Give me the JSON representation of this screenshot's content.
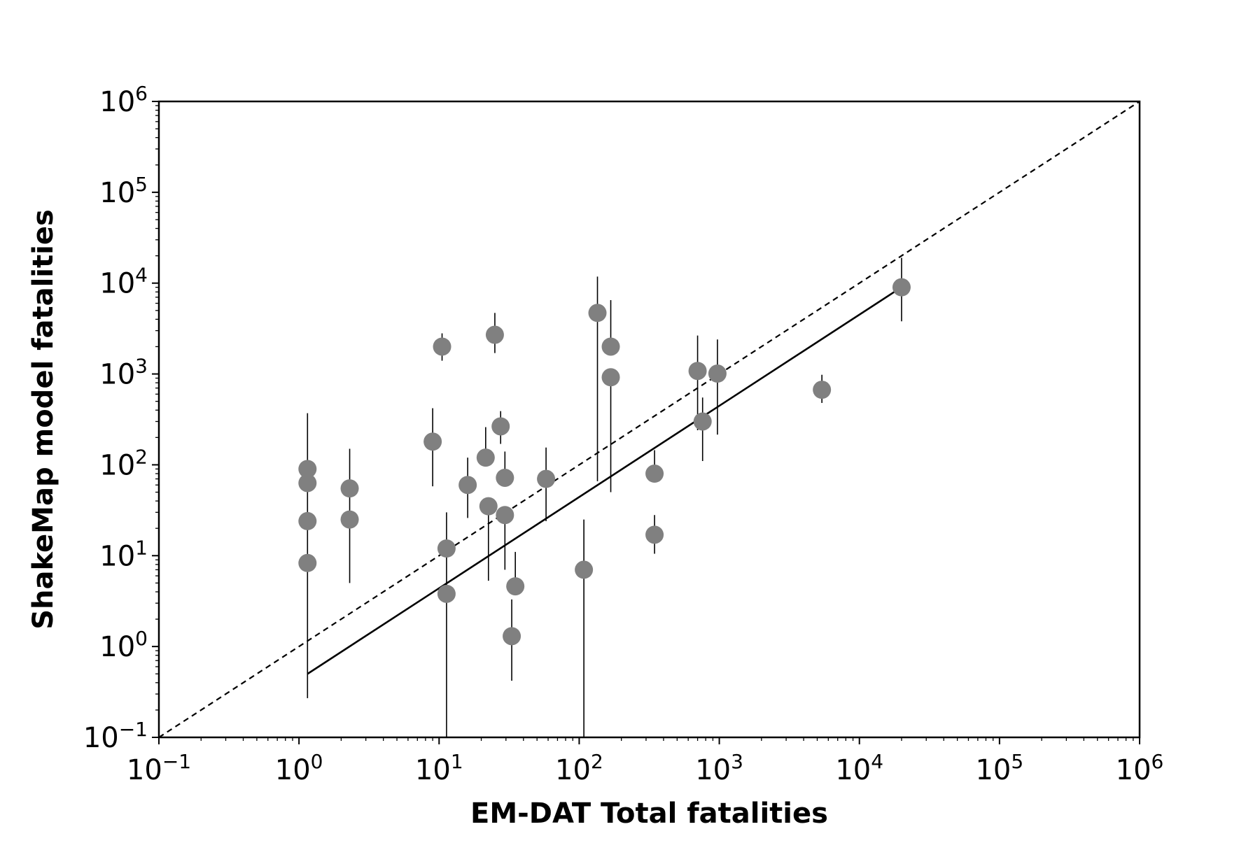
{
  "chart_data": {
    "type": "scatter",
    "title": "",
    "xlabel": "EM-DAT Total fatalities",
    "ylabel": "ShakeMap model fatalities",
    "x_scale": "log",
    "y_scale": "log",
    "xlim": [
      0.1,
      1000000
    ],
    "ylim": [
      0.1,
      1000000
    ],
    "grid": false,
    "legend": "none",
    "x_ticks": [
      {
        "value": 0.1,
        "base": "10",
        "exp": "−1"
      },
      {
        "value": 1,
        "base": "10",
        "exp": "0"
      },
      {
        "value": 10,
        "base": "10",
        "exp": "1"
      },
      {
        "value": 100,
        "base": "10",
        "exp": "2"
      },
      {
        "value": 1000,
        "base": "10",
        "exp": "3"
      },
      {
        "value": 10000,
        "base": "10",
        "exp": "4"
      },
      {
        "value": 100000,
        "base": "10",
        "exp": "5"
      },
      {
        "value": 1000000,
        "base": "10",
        "exp": "6"
      }
    ],
    "y_ticks": [
      {
        "value": 0.1,
        "base": "10",
        "exp": "−1"
      },
      {
        "value": 1,
        "base": "10",
        "exp": "0"
      },
      {
        "value": 10,
        "base": "10",
        "exp": "1"
      },
      {
        "value": 100,
        "base": "10",
        "exp": "2"
      },
      {
        "value": 1000,
        "base": "10",
        "exp": "3"
      },
      {
        "value": 10000,
        "base": "10",
        "exp": "4"
      },
      {
        "value": 100000,
        "base": "10",
        "exp": "5"
      },
      {
        "value": 1000000,
        "base": "10",
        "exp": "6"
      }
    ],
    "marker_color": "#808080",
    "line_color": "#000000",
    "points": [
      {
        "x": 1.15,
        "y": 90,
        "ylow": null,
        "yhigh": null
      },
      {
        "x": 1.15,
        "y": 63,
        "ylow": null,
        "yhigh": null
      },
      {
        "x": 1.15,
        "y": 24,
        "ylow": null,
        "yhigh": null
      },
      {
        "x": 1.15,
        "y": 8.3,
        "ylow": 0.27,
        "yhigh": 370
      },
      {
        "x": 2.3,
        "y": 55,
        "ylow": null,
        "yhigh": null
      },
      {
        "x": 2.3,
        "y": 25,
        "ylow": 5,
        "yhigh": 150
      },
      {
        "x": 9,
        "y": 180,
        "ylow": 58,
        "yhigh": 420
      },
      {
        "x": 10.5,
        "y": 2000,
        "ylow": 1400,
        "yhigh": 2800
      },
      {
        "x": 11.3,
        "y": 12,
        "ylow": null,
        "yhigh": null
      },
      {
        "x": 11.3,
        "y": 3.8,
        "ylow": 0.1,
        "yhigh": 30
      },
      {
        "x": 16,
        "y": 60,
        "ylow": 26,
        "yhigh": 120
      },
      {
        "x": 21.5,
        "y": 120,
        "ylow": null,
        "yhigh": 260
      },
      {
        "x": 22.5,
        "y": 35,
        "ylow": 5.3,
        "yhigh": null
      },
      {
        "x": 25,
        "y": 2700,
        "ylow": 1700,
        "yhigh": 4700
      },
      {
        "x": 27.5,
        "y": 265,
        "ylow": 170,
        "yhigh": 390
      },
      {
        "x": 29.5,
        "y": 72,
        "ylow": null,
        "yhigh": 140
      },
      {
        "x": 29.5,
        "y": 28,
        "ylow": 7,
        "yhigh": null
      },
      {
        "x": 33,
        "y": 1.3,
        "ylow": 0.42,
        "yhigh": 3.3
      },
      {
        "x": 35,
        "y": 4.6,
        "ylow": null,
        "yhigh": 11
      },
      {
        "x": 58,
        "y": 70,
        "ylow": 24,
        "yhigh": 155
      },
      {
        "x": 108,
        "y": 7,
        "ylow": 0.1,
        "yhigh": 25
      },
      {
        "x": 135,
        "y": 4700,
        "ylow": 66,
        "yhigh": 11800
      },
      {
        "x": 168,
        "y": 2000,
        "ylow": null,
        "yhigh": 6500
      },
      {
        "x": 168,
        "y": 920,
        "ylow": 50,
        "yhigh": null
      },
      {
        "x": 345,
        "y": 80,
        "ylow": null,
        "yhigh": 145
      },
      {
        "x": 345,
        "y": 17,
        "ylow": 10.5,
        "yhigh": 28
      },
      {
        "x": 700,
        "y": 1080,
        "ylow": 240,
        "yhigh": 2650
      },
      {
        "x": 760,
        "y": 300,
        "ylow": 110,
        "yhigh": 550
      },
      {
        "x": 970,
        "y": 1010,
        "ylow": 215,
        "yhigh": 2400
      },
      {
        "x": 5400,
        "y": 670,
        "ylow": 480,
        "yhigh": 980
      },
      {
        "x": 20000,
        "y": 9000,
        "ylow": 3800,
        "yhigh": 19000
      }
    ],
    "lines": [
      {
        "style": "dashed",
        "x": [
          0.1,
          1000000
        ],
        "y": [
          0.1,
          1000000
        ]
      },
      {
        "style": "solid",
        "x": [
          1.15,
          19500
        ],
        "y": [
          0.5,
          8800
        ]
      }
    ]
  }
}
